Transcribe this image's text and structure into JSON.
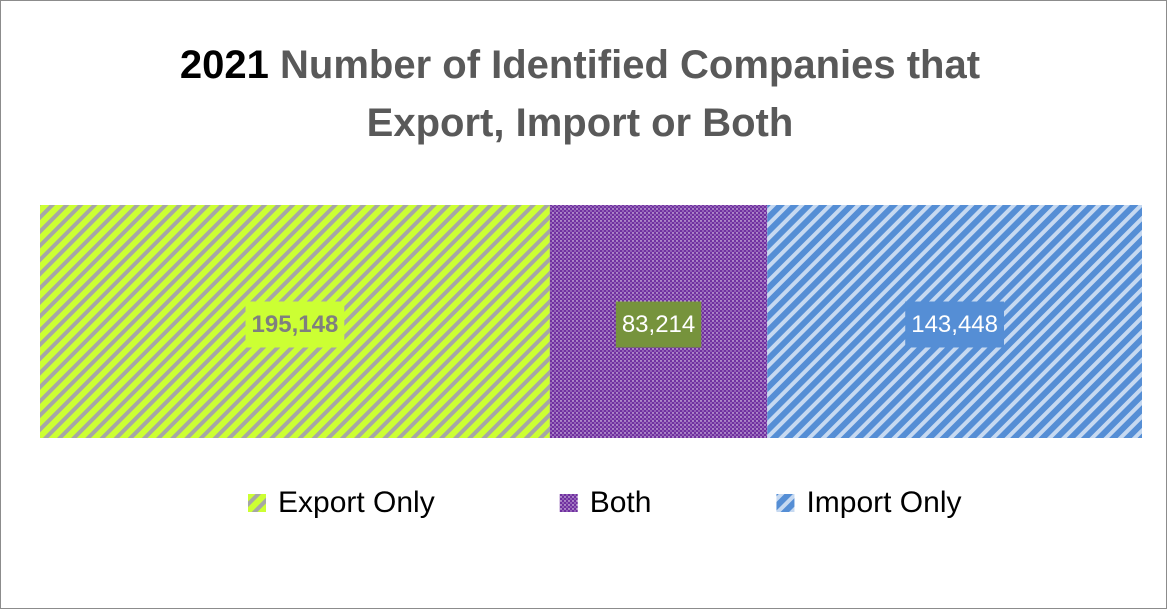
{
  "chart_data": {
    "type": "stacked-bar-horizontal",
    "title": "2021 Number of Identified Companies that Export, Import or Both",
    "series": [
      {
        "name": "Export Only",
        "color": "#ccff33",
        "values": [
          195148
        ],
        "value_labels": [
          "195,148"
        ]
      },
      {
        "name": "Both",
        "color": "#7030a0",
        "values": [
          83214
        ],
        "value_labels": [
          "83,214"
        ]
      },
      {
        "name": "Import Only",
        "color": "#558ed5",
        "values": [
          143448
        ],
        "value_labels": [
          "143,448"
        ]
      }
    ],
    "legend": "bottom"
  }
}
